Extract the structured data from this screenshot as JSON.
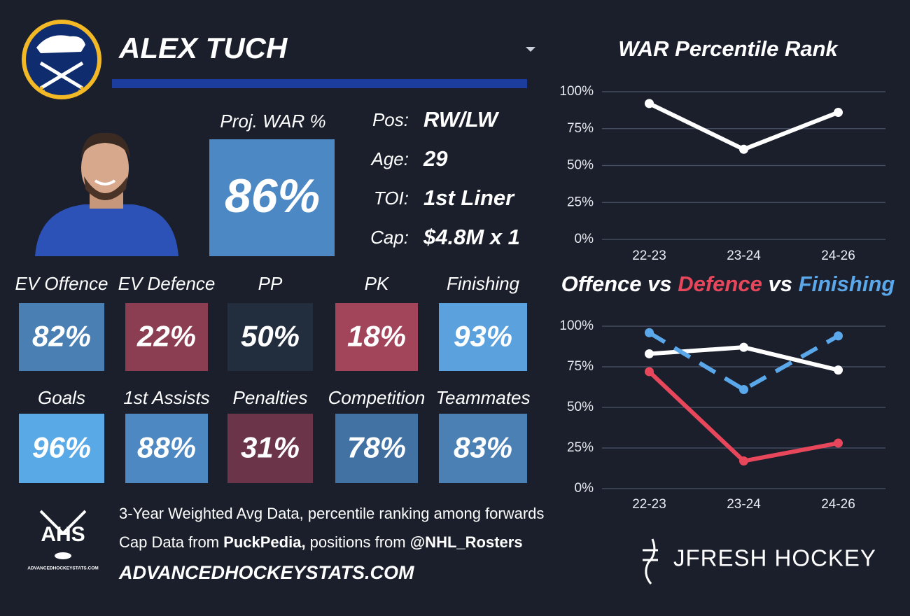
{
  "player": {
    "name": "ALEX TUCH",
    "proj": {
      "label": "Proj. WAR %",
      "value": "86%",
      "color": "#4b88c4"
    },
    "info": [
      {
        "label": "Pos:",
        "value": "RW/LW"
      },
      {
        "label": "Age:",
        "value": "29"
      },
      {
        "label": "TOI:",
        "value": "1st Liner"
      },
      {
        "label": "Cap:",
        "value": "$4.8M x 1"
      }
    ]
  },
  "tiles": [
    {
      "label": "EV Offence",
      "value": "82%",
      "color": "#4a7fb4"
    },
    {
      "label": "EV Defence",
      "value": "22%",
      "color": "#8b3d51"
    },
    {
      "label": "PP",
      "value": "50%",
      "color": "#222d3d"
    },
    {
      "label": "PK",
      "value": "18%",
      "color": "#a2445a"
    },
    {
      "label": "Finishing",
      "value": "93%",
      "color": "#5aa1dd"
    },
    {
      "label": "Goals",
      "value": "96%",
      "color": "#5aa9e7"
    },
    {
      "label": "1st Assists",
      "value": "88%",
      "color": "#4e88c2"
    },
    {
      "label": "Penalties",
      "value": "31%",
      "color": "#6b3449"
    },
    {
      "label": "Competition",
      "value": "78%",
      "color": "#4272a3"
    },
    {
      "label": "Teammates",
      "value": "83%",
      "color": "#4b80b5"
    }
  ],
  "footer": {
    "lines": [
      [
        {
          "text": "3-Year Weighted Avg Data, percentile ranking among forwards",
          "bold": false
        }
      ],
      [
        {
          "text": "Cap Data from ",
          "bold": false
        },
        {
          "text": "PuckPedia,",
          "bold": true
        },
        {
          "text": " positions from ",
          "bold": false
        },
        {
          "text": "@NHL_Rosters",
          "bold": true
        }
      ]
    ],
    "website": "ADVANCEDHOCKEYSTATS.COM",
    "ahs_logo": "AHS",
    "brand": "JFRESH HOCKEY"
  },
  "chart_data": [
    {
      "type": "line",
      "title": "WAR Percentile Rank",
      "categories": [
        "22-23",
        "23-24",
        "24-26"
      ],
      "series": [
        {
          "color": "#ffffff",
          "values": [
            92,
            61,
            86
          ]
        }
      ],
      "ylim": [
        0,
        100
      ],
      "yticks": [
        {
          "value": 0,
          "label": "0%"
        },
        {
          "value": 25,
          "label": "25%"
        },
        {
          "value": 50,
          "label": "50%"
        },
        {
          "value": 75,
          "label": "75%"
        },
        {
          "value": 100,
          "label": "100%"
        }
      ],
      "grid": true
    },
    {
      "type": "line",
      "title_separator": "vs",
      "categories": [
        "22-23",
        "23-24",
        "24-26"
      ],
      "series": [
        {
          "name": "Offence",
          "color": "#ffffff",
          "values": [
            83,
            87,
            73
          ]
        },
        {
          "name": "Defence",
          "color": "#e8475b",
          "values": [
            72,
            17,
            28
          ]
        },
        {
          "name": "Finishing",
          "color": "#5aa7ea",
          "values": [
            96,
            61,
            94
          ],
          "dashed": true
        }
      ],
      "ylim": [
        0,
        100
      ],
      "yticks": [
        {
          "value": 0,
          "label": "0%"
        },
        {
          "value": 25,
          "label": "25%"
        },
        {
          "value": 50,
          "label": "50%"
        },
        {
          "value": 75,
          "label": "75%"
        },
        {
          "value": 100,
          "label": "100%"
        }
      ],
      "grid": true
    }
  ]
}
